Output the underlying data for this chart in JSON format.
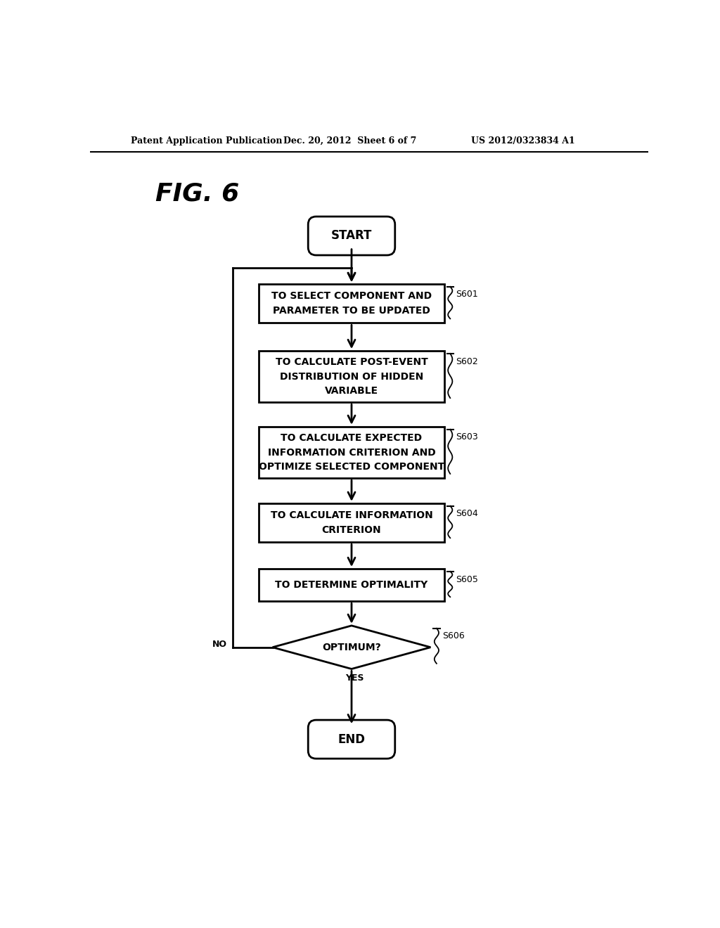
{
  "header_left": "Patent Application Publication",
  "header_mid": "Dec. 20, 2012  Sheet 6 of 7",
  "header_right": "US 2012/0323834 A1",
  "fig_label": "FIG. 6",
  "background_color": "#ffffff",
  "text_color": "#000000",
  "start_label": "START",
  "end_label": "END",
  "s601_label": "TO SELECT COMPONENT AND\nPARAMETER TO BE UPDATED",
  "s601_tag": "S601",
  "s602_label": "TO CALCULATE POST-EVENT\nDISTRIBUTION OF HIDDEN\nVARIABLE",
  "s602_tag": "S602",
  "s603_label": "TO CALCULATE EXPECTED\nINFORMATION CRITERION AND\nOPTIMIZE SELECTED COMPONENT",
  "s603_tag": "S603",
  "s604_label": "TO CALCULATE INFORMATION\nCRITERION",
  "s604_tag": "S604",
  "s605_label": "TO DETERMINE OPTIMALITY",
  "s605_tag": "S605",
  "s606_label": "OPTIMUM?",
  "s606_tag": "S606",
  "yes_label": "YES",
  "no_label": "NO"
}
